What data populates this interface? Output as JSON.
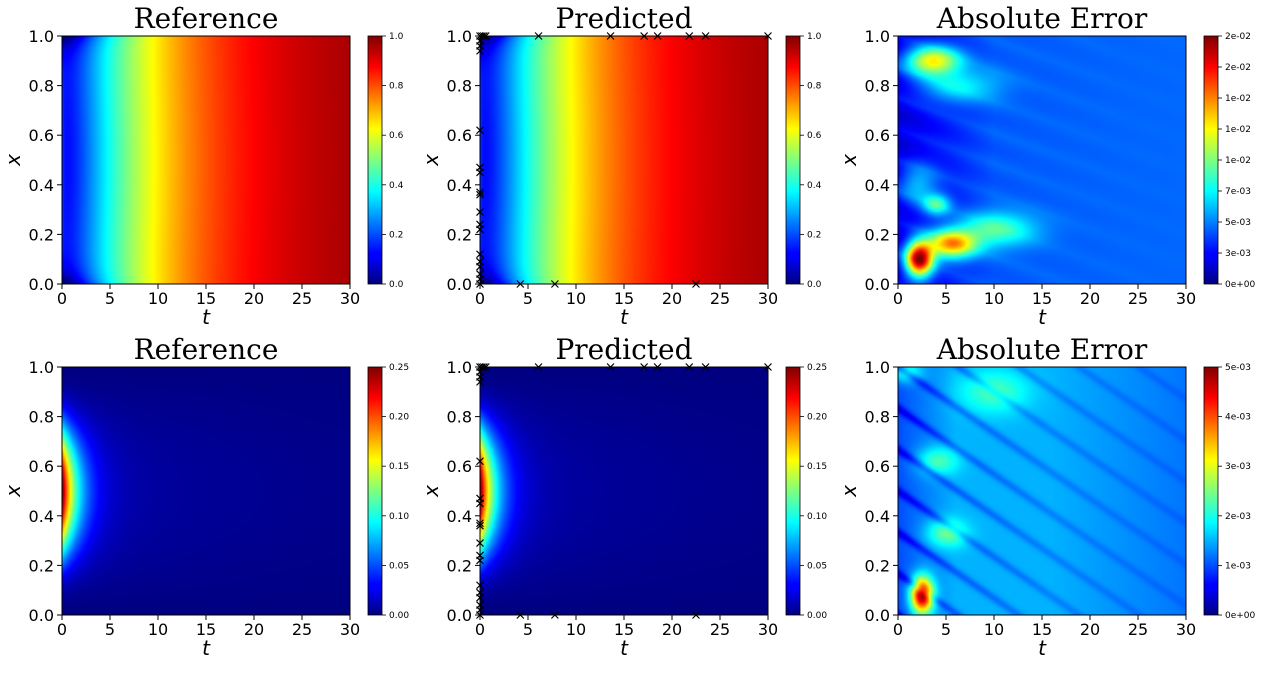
{
  "chart_data": [
    {
      "type": "heatmap",
      "field": "reference",
      "title": "Reference",
      "xlabel": "t",
      "ylabel": "x",
      "xlim": [
        0,
        30
      ],
      "ylim": [
        0,
        1
      ],
      "xticks": [
        "0",
        "5",
        "10",
        "15",
        "20",
        "25",
        "30"
      ],
      "yticks": [
        "0.0",
        "0.2",
        "0.4",
        "0.6",
        "0.8",
        "1.0"
      ],
      "colormap": "jet",
      "clim": [
        0,
        1
      ],
      "colorbar_ticks": [
        "0.0",
        "0.2",
        "0.4",
        "0.6",
        "0.8",
        "1.0"
      ],
      "markers": []
    },
    {
      "type": "heatmap",
      "field": "predicted",
      "title": "Predicted",
      "xlabel": "t",
      "ylabel": "x",
      "xlim": [
        0,
        30
      ],
      "ylim": [
        0,
        1
      ],
      "xticks": [
        "0",
        "5",
        "10",
        "15",
        "20",
        "25",
        "30"
      ],
      "yticks": [
        "0.0",
        "0.2",
        "0.4",
        "0.6",
        "0.8",
        "1.0"
      ],
      "colormap": "jet",
      "clim": [
        0,
        1
      ],
      "colorbar_ticks": [
        "0.0",
        "0.2",
        "0.4",
        "0.6",
        "0.8",
        "1.0"
      ],
      "marker_symbol": "×",
      "markers": [
        [
          0,
          1.0
        ],
        [
          0.2,
          1.0
        ],
        [
          0.4,
          1.0
        ],
        [
          0.6,
          1.0
        ],
        [
          0,
          0.98
        ],
        [
          0,
          0.96
        ],
        [
          0,
          0.94
        ],
        [
          6.1,
          1.0
        ],
        [
          13.6,
          1.0
        ],
        [
          17.1,
          1.0
        ],
        [
          18.5,
          1.0
        ],
        [
          21.8,
          1.0
        ],
        [
          23.5,
          1.0
        ],
        [
          30,
          1.0
        ],
        [
          0,
          0.62
        ],
        [
          0,
          0.47
        ],
        [
          0,
          0.45
        ],
        [
          0,
          0.37
        ],
        [
          0,
          0.36
        ],
        [
          0,
          0.29
        ],
        [
          0,
          0.24
        ],
        [
          0,
          0.22
        ],
        [
          0,
          0.12
        ],
        [
          0,
          0.09
        ],
        [
          0,
          0.07
        ],
        [
          0,
          0.04
        ],
        [
          0,
          0.02
        ],
        [
          0,
          0.0
        ],
        [
          4.2,
          0.0
        ],
        [
          7.8,
          0.0
        ],
        [
          22.5,
          0.0
        ]
      ]
    },
    {
      "type": "heatmap",
      "field": "error",
      "title": "Absolute Error",
      "xlabel": "t",
      "ylabel": "x",
      "xlim": [
        0,
        30
      ],
      "ylim": [
        0,
        1
      ],
      "xticks": [
        "0",
        "5",
        "10",
        "15",
        "20",
        "25",
        "30"
      ],
      "yticks": [
        "0.0",
        "0.2",
        "0.4",
        "0.6",
        "0.8",
        "1.0"
      ],
      "colormap": "jet",
      "clim": [
        0,
        0.02
      ],
      "colorbar_ticks": [
        "0e+00",
        "3e-03",
        "5e-03",
        "7e-03",
        "1e-02",
        "1e-02",
        "1e-02",
        "2e-02",
        "2e-02"
      ],
      "markers": []
    },
    {
      "type": "heatmap",
      "field": "reference",
      "title": "Reference",
      "xlabel": "t",
      "ylabel": "x",
      "xlim": [
        0,
        30
      ],
      "ylim": [
        0,
        1
      ],
      "xticks": [
        "0",
        "5",
        "10",
        "15",
        "20",
        "25",
        "30"
      ],
      "yticks": [
        "0.0",
        "0.2",
        "0.4",
        "0.6",
        "0.8",
        "1.0"
      ],
      "colormap": "jet",
      "clim": [
        0,
        0.25
      ],
      "colorbar_ticks": [
        "0.00",
        "0.05",
        "0.10",
        "0.15",
        "0.20",
        "0.25"
      ],
      "markers": []
    },
    {
      "type": "heatmap",
      "field": "predicted",
      "title": "Predicted",
      "xlabel": "t",
      "ylabel": "x",
      "xlim": [
        0,
        30
      ],
      "ylim": [
        0,
        1
      ],
      "xticks": [
        "0",
        "5",
        "10",
        "15",
        "20",
        "25",
        "30"
      ],
      "yticks": [
        "0.0",
        "0.2",
        "0.4",
        "0.6",
        "0.8",
        "1.0"
      ],
      "colormap": "jet",
      "clim": [
        0,
        0.25
      ],
      "colorbar_ticks": [
        "0.00",
        "0.05",
        "0.10",
        "0.15",
        "0.20",
        "0.25"
      ],
      "marker_symbol": "×",
      "markers": [
        [
          0,
          1.0
        ],
        [
          0.2,
          1.0
        ],
        [
          0.4,
          1.0
        ],
        [
          0.6,
          1.0
        ],
        [
          0,
          0.98
        ],
        [
          0,
          0.96
        ],
        [
          0,
          0.94
        ],
        [
          6.1,
          1.0
        ],
        [
          13.6,
          1.0
        ],
        [
          17.1,
          1.0
        ],
        [
          18.5,
          1.0
        ],
        [
          21.8,
          1.0
        ],
        [
          23.5,
          1.0
        ],
        [
          30,
          1.0
        ],
        [
          0,
          0.62
        ],
        [
          0,
          0.47
        ],
        [
          0,
          0.45
        ],
        [
          0,
          0.37
        ],
        [
          0,
          0.36
        ],
        [
          0,
          0.29
        ],
        [
          0,
          0.24
        ],
        [
          0,
          0.22
        ],
        [
          0,
          0.12
        ],
        [
          0,
          0.09
        ],
        [
          0,
          0.07
        ],
        [
          0,
          0.04
        ],
        [
          0,
          0.02
        ],
        [
          0,
          0.0
        ],
        [
          4.2,
          0.0
        ],
        [
          7.8,
          0.0
        ],
        [
          22.5,
          0.0
        ]
      ]
    },
    {
      "type": "heatmap",
      "field": "error",
      "title": "Absolute Error",
      "xlabel": "t",
      "ylabel": "x",
      "xlim": [
        0,
        30
      ],
      "ylim": [
        0,
        1
      ],
      "xticks": [
        "0",
        "5",
        "10",
        "15",
        "20",
        "25",
        "30"
      ],
      "yticks": [
        "0.0",
        "0.2",
        "0.4",
        "0.6",
        "0.8",
        "1.0"
      ],
      "colormap": "jet",
      "clim": [
        0,
        0.005
      ],
      "colorbar_ticks": [
        "0e+00",
        "1e-03",
        "2e-03",
        "3e-03",
        "4e-03",
        "5e-03"
      ],
      "markers": []
    }
  ]
}
